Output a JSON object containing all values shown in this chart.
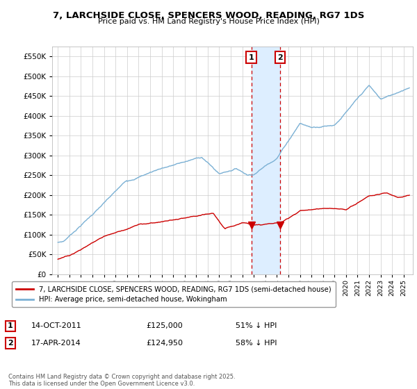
{
  "title": "7, LARCHSIDE CLOSE, SPENCERS WOOD, READING, RG7 1DS",
  "subtitle": "Price paid vs. HM Land Registry's House Price Index (HPI)",
  "legend_line1": "7, LARCHSIDE CLOSE, SPENCERS WOOD, READING, RG7 1DS (semi-detached house)",
  "legend_line2": "HPI: Average price, semi-detached house, Wokingham",
  "annotation1_label": "1",
  "annotation1_date": "14-OCT-2011",
  "annotation1_price": "£125,000",
  "annotation1_pct": "51% ↓ HPI",
  "annotation2_label": "2",
  "annotation2_date": "17-APR-2014",
  "annotation2_price": "£124,950",
  "annotation2_pct": "58% ↓ HPI",
  "sale1_year": 2011.79,
  "sale1_price": 125000,
  "sale2_year": 2014.29,
  "sale2_price": 124950,
  "copyright": "Contains HM Land Registry data © Crown copyright and database right 2025.\nThis data is licensed under the Open Government Licence v3.0.",
  "hpi_color": "#7ab0d4",
  "price_color": "#cc0000",
  "shade_color": "#ddeeff",
  "highlight_box_color": "#cc0000",
  "ylim_min": 0,
  "ylim_max": 575000,
  "xlim_min": 1994.5,
  "xlim_max": 2025.8,
  "yticks": [
    0,
    50000,
    100000,
    150000,
    200000,
    250000,
    300000,
    350000,
    400000,
    450000,
    500000,
    550000
  ],
  "xticks": [
    1995,
    1996,
    1997,
    1998,
    1999,
    2000,
    2001,
    2002,
    2003,
    2004,
    2005,
    2006,
    2007,
    2008,
    2009,
    2010,
    2011,
    2012,
    2013,
    2014,
    2015,
    2016,
    2017,
    2018,
    2019,
    2020,
    2021,
    2022,
    2023,
    2024,
    2025
  ]
}
